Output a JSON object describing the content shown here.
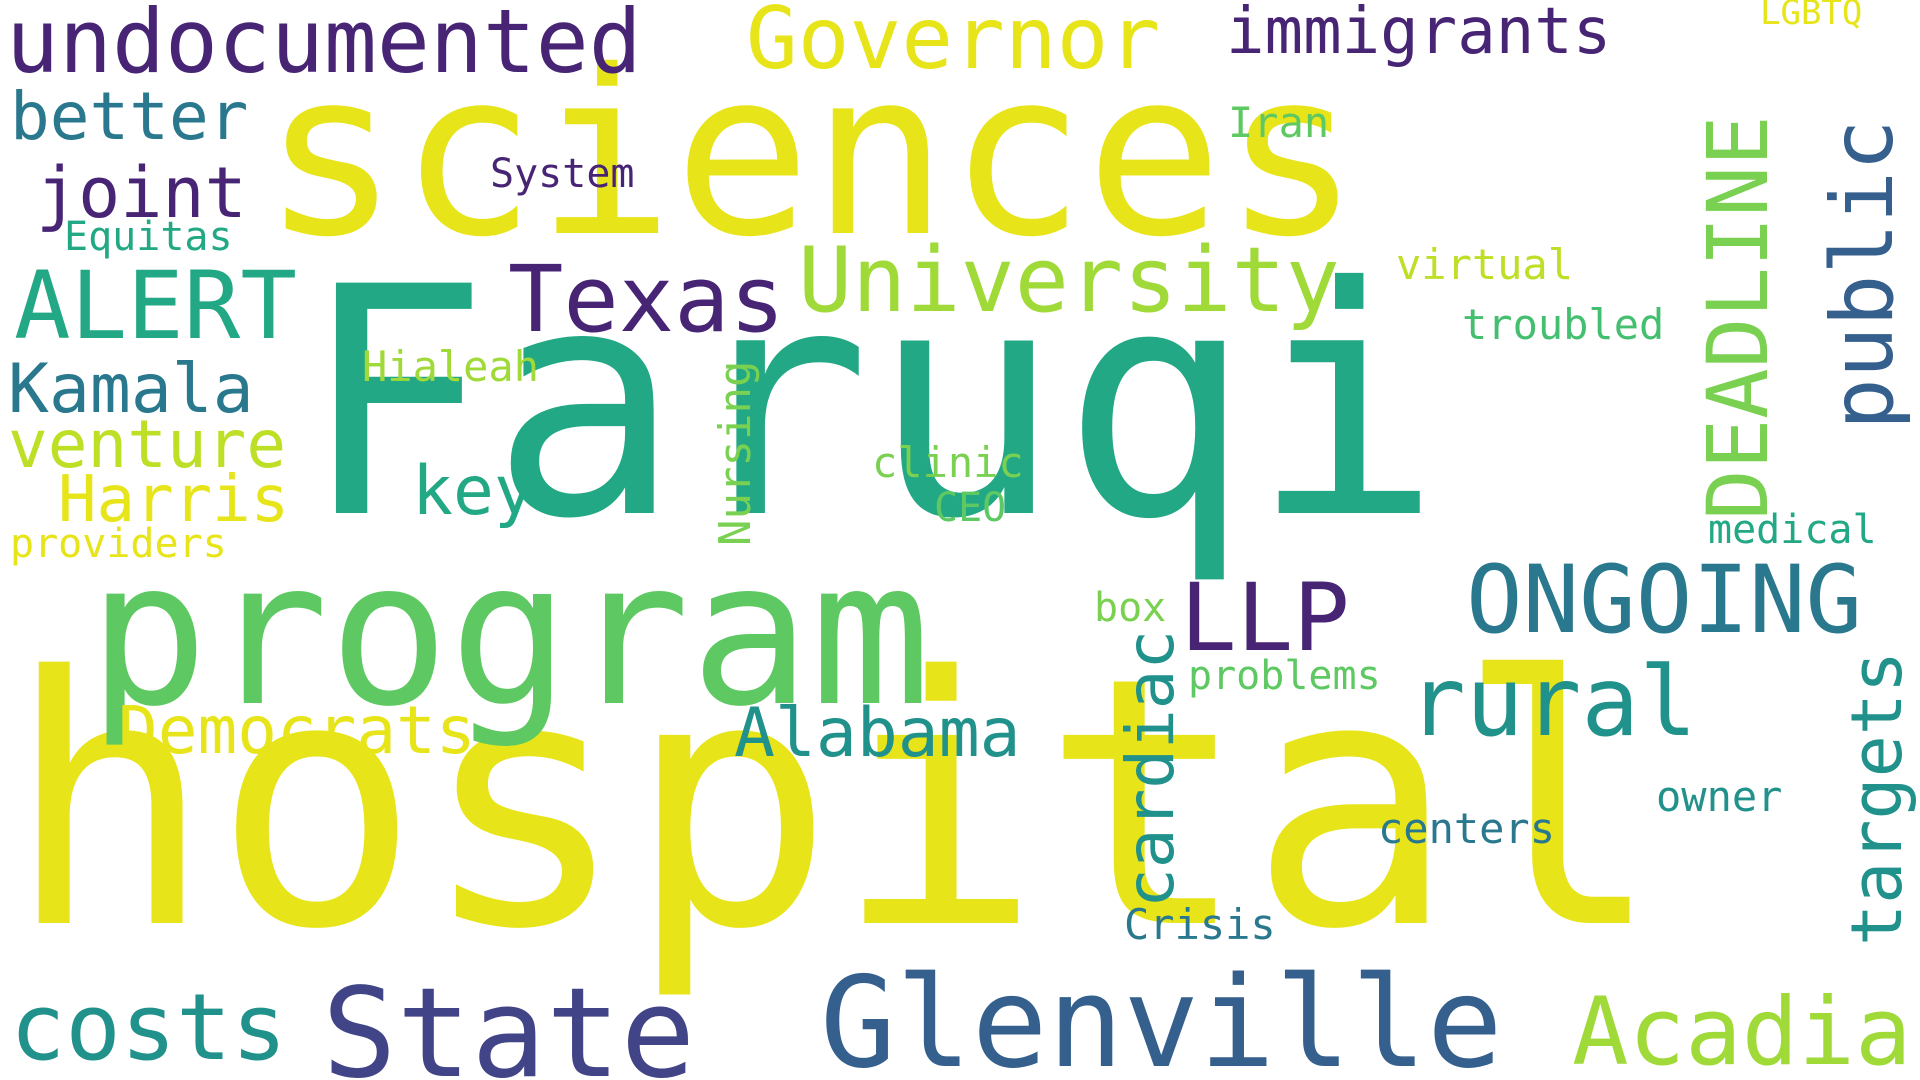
{
  "palette": {
    "dark_purple": "#482475",
    "indigo": "#414487",
    "blue": "#355f8d",
    "teal_blue": "#2a788e",
    "teal": "#21918c",
    "green_teal": "#22a884",
    "green": "#44bf70",
    "light_green": "#7ad151",
    "lime": "#bddf26",
    "yellow": "#e7e419"
  },
  "words": {
    "sciences": "sciences",
    "faruqi": "Faruqi",
    "hospital": "hospital",
    "program": "program",
    "undocumented": "undocumented",
    "governor": "Governor",
    "immigrants": "immigrants",
    "lgbtq": "LGBTQ",
    "better": "better",
    "iran": "Iran",
    "system": "System",
    "joint": "joint",
    "equitas": "Equitas",
    "deadline": "DEADLINE",
    "public": "public",
    "alert": "ALERT",
    "texas": "Texas",
    "university": "University",
    "virtual": "virtual",
    "troubled": "troubled",
    "kamala": "Kamala",
    "hialeah": "Hialeah",
    "venture": "venture",
    "harris": "Harris",
    "key": "key",
    "nursing": "Nursing",
    "clinic": "clinic",
    "ceo": "CEO",
    "providers": "providers",
    "medical": "medical",
    "llp": "LLP",
    "ongoing": "ONGOING",
    "box": "box",
    "cardiac": "cardiac",
    "problems": "problems",
    "democrats": "Democrats",
    "rural": "rural",
    "alabama": "Alabama",
    "targets": "targets",
    "owner": "owner",
    "centers": "centers",
    "crisis": "Crisis",
    "costs": "costs",
    "state": "State",
    "glenville": "Glenville",
    "acadia": "Acadia"
  }
}
